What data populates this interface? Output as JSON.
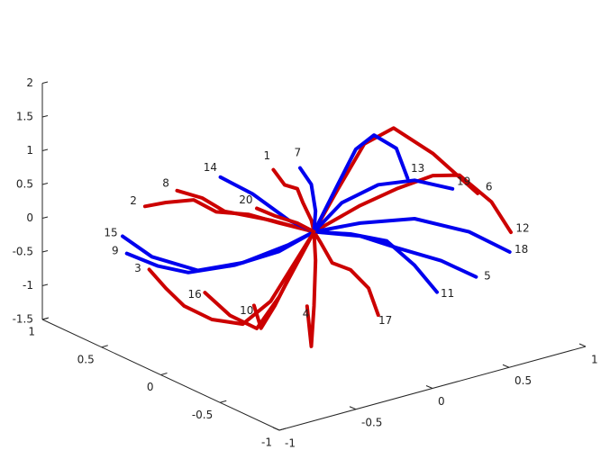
{
  "chart_data": {
    "type": "line3d",
    "xlim": [
      -1,
      1
    ],
    "ylim": [
      -1,
      1
    ],
    "zlim": [
      -1.5,
      2
    ],
    "xticks": [
      -1,
      -0.5,
      0,
      0.5,
      1
    ],
    "yticks": [
      -1,
      -0.5,
      0,
      0.5,
      1
    ],
    "zticks": [
      -1.5,
      -1,
      -0.5,
      0,
      0.5,
      1,
      1.5,
      2
    ],
    "series": [
      {
        "name": "1",
        "color": "#cc0000",
        "x": [
          -0.18,
          -0.13,
          -0.07,
          -0.05,
          -0.01,
          0
        ],
        "y": [
          0.11,
          0.08,
          0.05,
          0.03,
          0.01,
          0
        ],
        "z": [
          0.94,
          0.71,
          0.64,
          0.44,
          0.17,
          0
        ]
      },
      {
        "name": "2",
        "color": "#cc0000",
        "x": [
          -0.74,
          -0.65,
          -0.53,
          -0.43,
          -0.29,
          -0.15,
          0
        ],
        "y": [
          0.47,
          0.41,
          0.33,
          0.27,
          0.18,
          0.1,
          0
        ],
        "z": [
          0.45,
          0.5,
          0.53,
          0.34,
          0.29,
          0.14,
          0
        ]
      },
      {
        "name": "3",
        "color": "#cc0000",
        "x": [
          -0.72,
          -0.65,
          -0.57,
          -0.45,
          -0.31,
          -0.19,
          -0.09,
          0
        ],
        "y": [
          0.46,
          0.41,
          0.36,
          0.28,
          0.2,
          0.12,
          0.06,
          0
        ],
        "z": [
          -0.49,
          -0.77,
          -1.04,
          -1.25,
          -1.34,
          -1.01,
          -0.49,
          0
        ]
      },
      {
        "name": "4",
        "color": "#cc0000",
        "x": [
          -0.03,
          -0.01,
          0,
          0.01,
          0
        ],
        "y": [
          0.02,
          0.01,
          0,
          0,
          0
        ],
        "z": [
          -1.1,
          -1.7,
          -1.1,
          -0.43,
          0
        ]
      },
      {
        "name": "5",
        "color": "#0000ee",
        "x": [
          0.71,
          0.56,
          0.36,
          0.2,
          0
        ],
        "y": [
          -0.45,
          -0.35,
          -0.23,
          -0.13,
          0
        ],
        "z": [
          -0.74,
          -0.49,
          -0.27,
          -0.08,
          0
        ]
      },
      {
        "name": "6",
        "color": "#cc0000",
        "x": [
          0.72,
          0.52,
          0.35,
          0.22,
          0.1,
          0
        ],
        "y": [
          -0.45,
          -0.33,
          -0.22,
          -0.14,
          -0.07,
          0
        ],
        "z": [
          0.49,
          1.11,
          1.5,
          1.28,
          0.62,
          0
        ]
      },
      {
        "name": "7",
        "color": "#0000ee",
        "x": [
          -0.06,
          -0.01,
          0.01,
          0
        ],
        "y": [
          0.04,
          0.01,
          0,
          0
        ],
        "z": [
          0.95,
          0.7,
          0.3,
          0
        ]
      },
      {
        "name": "8",
        "color": "#cc0000",
        "x": [
          -0.6,
          -0.49,
          -0.39,
          -0.19,
          0
        ],
        "y": [
          0.38,
          0.31,
          0.25,
          0.12,
          0
        ],
        "z": [
          0.67,
          0.55,
          0.34,
          0.19,
          0
        ]
      },
      {
        "name": "9",
        "color": "#0000ee",
        "x": [
          -0.82,
          -0.69,
          -0.55,
          -0.35,
          -0.15,
          0
        ],
        "y": [
          0.52,
          0.43,
          0.35,
          0.22,
          0.1,
          0
        ],
        "z": [
          -0.24,
          -0.43,
          -0.55,
          -0.46,
          -0.28,
          0
        ]
      },
      {
        "name": "10",
        "color": "#cc0000",
        "x": [
          -0.26,
          -0.23,
          -0.17,
          -0.07,
          0
        ],
        "y": [
          0.17,
          0.15,
          0.11,
          0.05,
          0
        ],
        "z": [
          -1.07,
          -1.41,
          -1.08,
          -0.43,
          0
        ]
      },
      {
        "name": "11",
        "color": "#0000ee",
        "x": [
          0.54,
          0.44,
          0.32,
          0.16,
          0
        ],
        "y": [
          -0.34,
          -0.28,
          -0.2,
          -0.1,
          0
        ],
        "z": [
          -0.95,
          -0.54,
          -0.17,
          -0.05,
          0
        ]
      },
      {
        "name": "12",
        "color": "#cc0000",
        "x": [
          0.86,
          0.78,
          0.64,
          0.52,
          0.36,
          0.2,
          0
        ],
        "y": [
          -0.55,
          -0.49,
          -0.4,
          -0.33,
          -0.23,
          -0.13,
          0
        ],
        "z": [
          -0.09,
          0.36,
          0.77,
          0.78,
          0.6,
          0.37,
          0
        ]
      },
      {
        "name": "13",
        "color": "#0000ee",
        "x": [
          0.41,
          0.36,
          0.26,
          0.18,
          0.1,
          0
        ],
        "y": [
          -0.26,
          -0.23,
          -0.17,
          -0.12,
          -0.07,
          0
        ],
        "z": [
          0.75,
          1.2,
          1.41,
          1.21,
          0.69,
          0
        ]
      },
      {
        "name": "14",
        "color": "#0000ee",
        "x": [
          -0.41,
          -0.27,
          -0.11,
          0
        ],
        "y": [
          0.26,
          0.17,
          0.07,
          0
        ],
        "z": [
          0.85,
          0.59,
          0.18,
          0
        ]
      },
      {
        "name": "15",
        "color": "#0000ee",
        "x": [
          -0.84,
          -0.71,
          -0.51,
          -0.31,
          -0.11,
          0
        ],
        "y": [
          0.53,
          0.45,
          0.32,
          0.2,
          0.07,
          0
        ],
        "z": [
          0.02,
          -0.3,
          -0.52,
          -0.43,
          -0.18,
          0
        ]
      },
      {
        "name": "16",
        "color": "#cc0000",
        "x": [
          -0.48,
          -0.37,
          -0.25,
          -0.15,
          0
        ],
        "y": [
          0.3,
          0.23,
          0.16,
          0.1,
          0
        ],
        "z": [
          -0.85,
          -1.2,
          -1.41,
          -0.95,
          0
        ]
      },
      {
        "name": "17",
        "color": "#cc0000",
        "x": [
          0.28,
          0.24,
          0.16,
          0.08,
          0.03,
          0
        ],
        "y": [
          -0.18,
          -0.15,
          -0.1,
          -0.05,
          -0.02,
          0
        ],
        "z": [
          -1.26,
          -0.86,
          -0.58,
          -0.47,
          -0.17,
          0
        ]
      },
      {
        "name": "18",
        "color": "#0000ee",
        "x": [
          0.86,
          0.68,
          0.44,
          0.2,
          0
        ],
        "y": [
          -0.54,
          -0.43,
          -0.28,
          -0.13,
          0
        ],
        "z": [
          -0.39,
          -0.07,
          0.15,
          0.11,
          0
        ]
      },
      {
        "name": "19",
        "color": "#0000ee",
        "x": [
          0.61,
          0.44,
          0.28,
          0.12,
          0
        ],
        "y": [
          -0.38,
          -0.28,
          -0.18,
          -0.08,
          0
        ],
        "z": [
          0.57,
          0.72,
          0.67,
          0.42,
          0
        ]
      },
      {
        "name": "20",
        "color": "#cc0000",
        "x": [
          -0.25,
          -0.17,
          -0.07,
          0
        ],
        "y": [
          0.16,
          0.11,
          0.05,
          0
        ],
        "z": [
          0.37,
          0.25,
          0.13,
          0
        ]
      }
    ]
  }
}
